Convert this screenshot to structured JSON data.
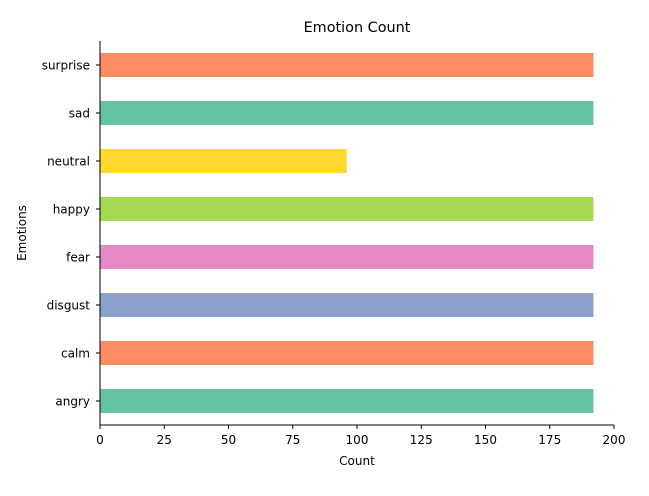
{
  "chart_data": {
    "type": "bar",
    "orientation": "horizontal",
    "title": "Emotion Count",
    "xlabel": "Count",
    "ylabel": "Emotions",
    "categories": [
      "angry",
      "calm",
      "disgust",
      "fear",
      "happy",
      "neutral",
      "sad",
      "surprise"
    ],
    "values": [
      192,
      192,
      192,
      192,
      192,
      96,
      192,
      192
    ],
    "colors": [
      "#66c2a5",
      "#fc8d62",
      "#8da0cb",
      "#e78ac3",
      "#a6d854",
      "#ffd92f",
      "#66c2a5",
      "#fc8d62"
    ],
    "xlim": [
      0,
      200
    ],
    "xticks": [
      0,
      25,
      50,
      75,
      100,
      125,
      150,
      175,
      200
    ],
    "grid": false,
    "legend": "none"
  }
}
